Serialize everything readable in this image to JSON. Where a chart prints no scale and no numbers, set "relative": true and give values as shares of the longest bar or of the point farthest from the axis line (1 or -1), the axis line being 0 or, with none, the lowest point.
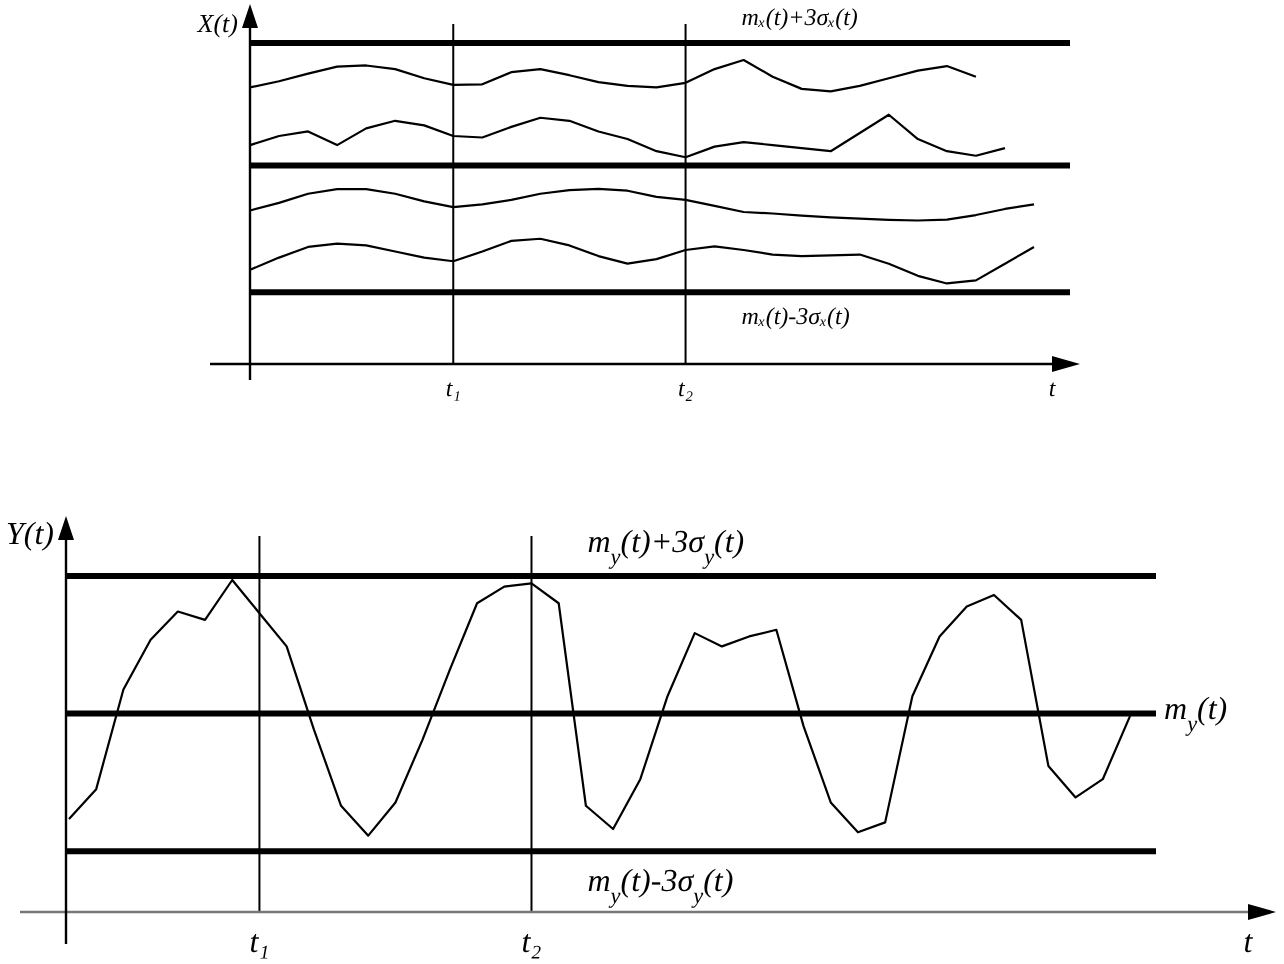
{
  "chart_data": [
    {
      "type": "line",
      "relative": true,
      "ylabel": "X(t)",
      "xlabel": "t",
      "grid": "x",
      "categories": [
        null,
        null,
        null,
        null,
        null,
        null,
        null,
        "t₁",
        null,
        null,
        null,
        null,
        null,
        null,
        null,
        "t₂",
        null,
        null,
        null,
        null,
        null,
        null,
        null,
        null,
        null,
        null,
        null,
        null
      ],
      "series": [
        {
          "color": "#000000",
          "values": [
            0.91,
            0.93,
            0.955,
            0.978,
            0.982,
            0.97,
            0.94,
            0.918,
            0.92,
            0.96,
            0.97,
            0.95,
            0.927,
            0.915,
            0.91,
            0.925,
            0.97,
            1.0,
            0.945,
            0.905,
            0.897,
            0.915,
            0.94,
            0.965,
            0.98,
            0.945,
            null,
            null
          ]
        },
        {
          "color": "#000000",
          "values": [
            0.72,
            0.75,
            0.765,
            0.72,
            0.775,
            0.8,
            0.785,
            0.75,
            0.745,
            0.78,
            0.81,
            0.8,
            0.765,
            0.74,
            0.7,
            0.68,
            0.715,
            0.73,
            0.72,
            0.71,
            0.7,
            0.76,
            0.82,
            0.74,
            0.7,
            0.685,
            0.71,
            null
          ]
        },
        {
          "color": "#000000",
          "values": [
            0.505,
            0.53,
            0.56,
            0.575,
            0.575,
            0.56,
            0.535,
            0.516,
            0.525,
            0.54,
            0.56,
            0.572,
            0.576,
            0.57,
            0.55,
            0.54,
            0.52,
            0.5,
            0.495,
            0.488,
            0.482,
            0.478,
            0.474,
            0.472,
            0.475,
            0.49,
            0.51,
            0.525
          ]
        },
        {
          "color": "#000000",
          "values": [
            0.31,
            0.35,
            0.385,
            0.396,
            0.39,
            0.37,
            0.35,
            0.338,
            0.37,
            0.405,
            0.412,
            0.39,
            0.355,
            0.33,
            0.345,
            0.375,
            0.387,
            0.375,
            0.36,
            0.355,
            0.357,
            0.36,
            0.33,
            0.29,
            0.265,
            0.275,
            0.33,
            0.385
          ]
        }
      ],
      "ref_lines": [
        {
          "axis": "y",
          "value": 1.056,
          "label": "mₓ(t)+3σₓ(t)",
          "color": "#000000"
        },
        {
          "axis": "y",
          "value": 0.653,
          "color": "#000000"
        },
        {
          "axis": "y",
          "value": 0.236,
          "label": "mₓ(t)-3σₓ(t)",
          "color": "#000000"
        }
      ]
    },
    {
      "type": "line",
      "relative": true,
      "ylabel": "Y(t)",
      "xlabel": "t",
      "grid": "x",
      "categories": [
        null,
        null,
        null,
        null,
        null,
        null,
        null,
        "t₁",
        null,
        null,
        null,
        null,
        null,
        null,
        null,
        null,
        null,
        "t₂",
        null,
        null,
        null,
        null,
        null,
        null,
        null,
        null,
        null,
        null,
        null,
        null,
        null,
        null,
        null,
        null,
        null,
        null,
        null,
        null,
        null,
        null
      ],
      "series": [
        {
          "color": "#000000",
          "values": [
            0.28,
            0.37,
            0.67,
            0.82,
            0.905,
            0.88,
            1.0,
            0.9,
            0.8,
            0.55,
            0.32,
            0.23,
            0.33,
            0.52,
            0.73,
            0.93,
            0.98,
            0.99,
            0.93,
            0.32,
            0.25,
            0.4,
            0.65,
            0.84,
            0.8,
            0.83,
            0.85,
            0.56,
            0.33,
            0.24,
            0.27,
            0.65,
            0.83,
            0.92,
            0.955,
            0.88,
            0.44,
            0.345,
            0.4,
            0.59
          ]
        }
      ],
      "ref_lines": [
        {
          "axis": "y",
          "value": 1.012,
          "label": "m$_{y}$(t)+3σ$_{y}$(t)",
          "color": "#000000"
        },
        {
          "axis": "y",
          "value": 0.598,
          "label": "m$_{y}$(t)",
          "color": "#000000"
        },
        {
          "axis": "y",
          "value": 0.183,
          "label": "m$_{y}$(t)-3σ$_{y}$(t)",
          "color": "#000000"
        }
      ]
    }
  ]
}
